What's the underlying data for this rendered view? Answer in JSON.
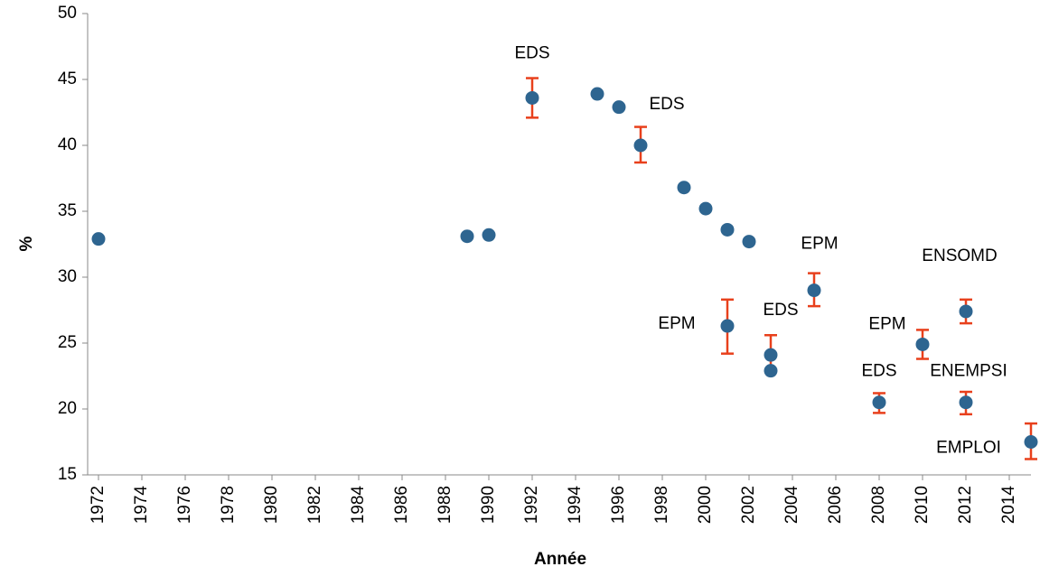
{
  "chart_data": {
    "type": "scatter",
    "x_label": "Année",
    "y_label": "%",
    "xlim": [
      1971.5,
      2015
    ],
    "xticks": [
      1972,
      1974,
      1976,
      1978,
      1980,
      1982,
      1984,
      1986,
      1988,
      1990,
      1992,
      1994,
      1996,
      1998,
      2000,
      2002,
      2004,
      2006,
      2008,
      2010,
      2012,
      2014
    ],
    "ylim": [
      15,
      50
    ],
    "yticks": [
      15,
      20,
      25,
      30,
      35,
      40,
      45,
      50
    ],
    "color": "#2e6590",
    "error_color": "#e8401c",
    "x": [
      1972,
      1989,
      1990,
      1992,
      1995,
      1996,
      1997,
      1999,
      2000,
      2001,
      2002,
      2001,
      2003,
      2003,
      2005,
      2008,
      2010,
      2012,
      2012,
      2015
    ],
    "values": [
      32.9,
      33.1,
      33.2,
      43.6,
      43.9,
      42.9,
      40.0,
      36.8,
      35.2,
      33.6,
      32.7,
      26.3,
      24.1,
      22.9,
      29.0,
      20.5,
      24.9,
      27.4,
      20.5,
      17.5
    ],
    "error_low": [
      null,
      null,
      null,
      42.1,
      null,
      null,
      38.7,
      null,
      null,
      null,
      null,
      24.2,
      22.9,
      null,
      27.8,
      19.7,
      23.8,
      26.5,
      19.6,
      16.2
    ],
    "error_high": [
      null,
      null,
      null,
      45.1,
      null,
      null,
      41.4,
      null,
      null,
      null,
      null,
      28.3,
      25.6,
      null,
      30.3,
      21.2,
      26.0,
      28.3,
      21.3,
      18.9
    ],
    "labels": [
      null,
      null,
      null,
      "EDS",
      null,
      null,
      "EDS",
      null,
      null,
      null,
      null,
      "EPM",
      "EDS",
      null,
      "EPM",
      "EDS",
      "EPM",
      "ENSOMD",
      "ENEMPSI",
      "EMPLOI"
    ]
  }
}
